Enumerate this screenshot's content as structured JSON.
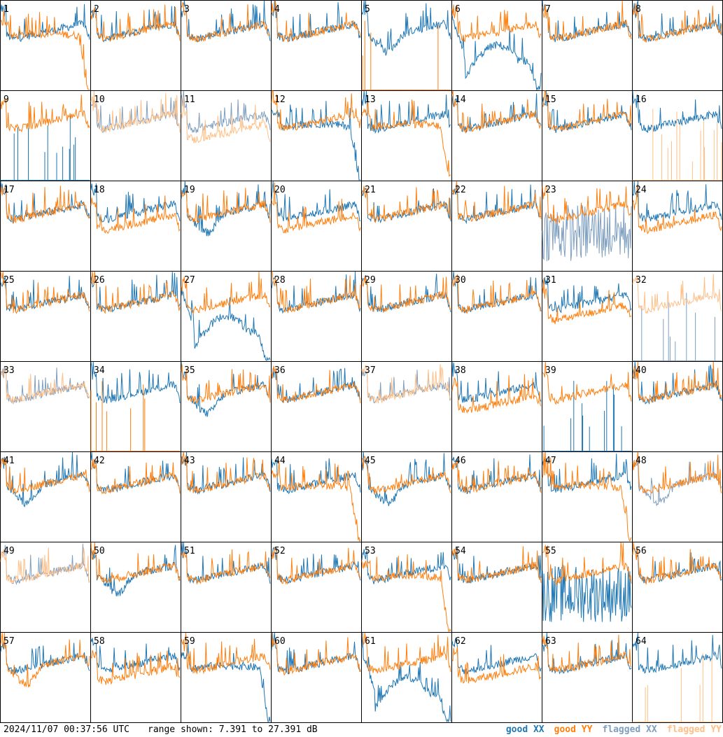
{
  "footer": {
    "timestamp": "2024/11/07 00:37:56 UTC",
    "range_text": "range shown: 7.391 to 27.391 dB"
  },
  "legend": [
    {
      "label": "good XX",
      "color": "#1f77b4"
    },
    {
      "label": "good YY",
      "color": "#ff7f0e"
    },
    {
      "label": "flagged XX",
      "color": "#7f9fbf"
    },
    {
      "label": "flagged YY",
      "color": "#ffbf86"
    }
  ],
  "colors": {
    "good_xx": "#1f77b4",
    "good_yy": "#ff7f0e",
    "flagged_xx": "#7f9fbf",
    "flagged_yy": "#ffbf86"
  },
  "chart_data": {
    "type": "line",
    "ylim": [
      7.391,
      27.391
    ],
    "yunit": "dB",
    "grid": "8x8 small multiples",
    "panels": [
      {
        "id": "1",
        "xx": "good",
        "yy": "good",
        "xx_shape": "flat",
        "yy_shape": "droop"
      },
      {
        "id": "2",
        "xx": "good",
        "yy": "good",
        "xx_shape": "flat",
        "yy_shape": "flat"
      },
      {
        "id": "3",
        "xx": "good",
        "yy": "good",
        "xx_shape": "flat",
        "yy_shape": "flat"
      },
      {
        "id": "4",
        "xx": "good",
        "yy": "good",
        "xx_shape": "flat",
        "yy_shape": "flat"
      },
      {
        "id": "5",
        "xx": "good",
        "yy": "good",
        "xx_shape": "dip",
        "yy_shape": "spike"
      },
      {
        "id": "6",
        "xx": "good",
        "yy": "good",
        "xx_shape": "deep",
        "yy_shape": "flat"
      },
      {
        "id": "7",
        "xx": "good",
        "yy": "good",
        "xx_shape": "flat",
        "yy_shape": "flat"
      },
      {
        "id": "8",
        "xx": "good",
        "yy": "good",
        "xx_shape": "flat",
        "yy_shape": "flat"
      },
      {
        "id": "9",
        "xx": "good",
        "yy": "good",
        "xx_shape": "spike",
        "yy_shape": "flat"
      },
      {
        "id": "10",
        "xx": "flagged",
        "yy": "flagged",
        "xx_shape": "flat",
        "yy_shape": "flat"
      },
      {
        "id": "11",
        "xx": "flagged",
        "yy": "flagged",
        "xx_shape": "flat",
        "yy_shape": "low"
      },
      {
        "id": "12",
        "xx": "good",
        "yy": "good",
        "xx_shape": "droop",
        "yy_shape": "flat"
      },
      {
        "id": "13",
        "xx": "good",
        "yy": "good",
        "xx_shape": "flat",
        "yy_shape": "droop"
      },
      {
        "id": "14",
        "xx": "good",
        "yy": "good",
        "xx_shape": "flat",
        "yy_shape": "flat"
      },
      {
        "id": "15",
        "xx": "good",
        "yy": "good",
        "xx_shape": "flat",
        "yy_shape": "flat"
      },
      {
        "id": "16",
        "xx": "good",
        "yy": "flagged",
        "xx_shape": "flat",
        "yy_shape": "spike"
      },
      {
        "id": "17",
        "xx": "good",
        "yy": "good",
        "xx_shape": "flat",
        "yy_shape": "flat"
      },
      {
        "id": "18",
        "xx": "good",
        "yy": "good",
        "xx_shape": "flat",
        "yy_shape": "low"
      },
      {
        "id": "19",
        "xx": "good",
        "yy": "good",
        "xx_shape": "dip",
        "yy_shape": "flat"
      },
      {
        "id": "20",
        "xx": "good",
        "yy": "good",
        "xx_shape": "flat",
        "yy_shape": "low"
      },
      {
        "id": "21",
        "xx": "good",
        "yy": "good",
        "xx_shape": "flat",
        "yy_shape": "flat"
      },
      {
        "id": "22",
        "xx": "good",
        "yy": "good",
        "xx_shape": "flat",
        "yy_shape": "flat"
      },
      {
        "id": "23",
        "xx": "flagged",
        "yy": "good",
        "xx_shape": "noise",
        "yy_shape": "flat"
      },
      {
        "id": "24",
        "xx": "good",
        "yy": "good",
        "xx_shape": "flat",
        "yy_shape": "low"
      },
      {
        "id": "25",
        "xx": "good",
        "yy": "good",
        "xx_shape": "flat",
        "yy_shape": "flat"
      },
      {
        "id": "26",
        "xx": "good",
        "yy": "good",
        "xx_shape": "flat",
        "yy_shape": "flat"
      },
      {
        "id": "27",
        "xx": "good",
        "yy": "good",
        "xx_shape": "deep",
        "yy_shape": "flat"
      },
      {
        "id": "28",
        "xx": "good",
        "yy": "good",
        "xx_shape": "flat",
        "yy_shape": "flat"
      },
      {
        "id": "29",
        "xx": "good",
        "yy": "good",
        "xx_shape": "flat",
        "yy_shape": "flat"
      },
      {
        "id": "30",
        "xx": "good",
        "yy": "good",
        "xx_shape": "flat",
        "yy_shape": "flat"
      },
      {
        "id": "31",
        "xx": "good",
        "yy": "good",
        "xx_shape": "flat",
        "yy_shape": "low"
      },
      {
        "id": "32",
        "xx": "flagged",
        "yy": "flagged",
        "xx_shape": "spike",
        "yy_shape": "flat"
      },
      {
        "id": "33",
        "xx": "flagged",
        "yy": "flagged",
        "xx_shape": "flat",
        "yy_shape": "flat"
      },
      {
        "id": "34",
        "xx": "good",
        "yy": "good",
        "xx_shape": "flat",
        "yy_shape": "spike"
      },
      {
        "id": "35",
        "xx": "good",
        "yy": "good",
        "xx_shape": "dip",
        "yy_shape": "flat"
      },
      {
        "id": "36",
        "xx": "good",
        "yy": "good",
        "xx_shape": "flat",
        "yy_shape": "flat"
      },
      {
        "id": "37",
        "xx": "flagged",
        "yy": "flagged",
        "xx_shape": "flat",
        "yy_shape": "flat"
      },
      {
        "id": "38",
        "xx": "good",
        "yy": "good",
        "xx_shape": "flat",
        "yy_shape": "low"
      },
      {
        "id": "39",
        "xx": "good",
        "yy": "good",
        "xx_shape": "spike",
        "yy_shape": "flat"
      },
      {
        "id": "40",
        "xx": "good",
        "yy": "good",
        "xx_shape": "flat",
        "yy_shape": "flat"
      },
      {
        "id": "41",
        "xx": "good",
        "yy": "good",
        "xx_shape": "dip",
        "yy_shape": "flat"
      },
      {
        "id": "42",
        "xx": "good",
        "yy": "good",
        "xx_shape": "flat",
        "yy_shape": "flat"
      },
      {
        "id": "43",
        "xx": "good",
        "yy": "good",
        "xx_shape": "flat",
        "yy_shape": "flat"
      },
      {
        "id": "44",
        "xx": "good",
        "yy": "good",
        "xx_shape": "flat",
        "yy_shape": "droop"
      },
      {
        "id": "45",
        "xx": "good",
        "yy": "good",
        "xx_shape": "dip",
        "yy_shape": "flat"
      },
      {
        "id": "46",
        "xx": "good",
        "yy": "good",
        "xx_shape": "flat",
        "yy_shape": "flat"
      },
      {
        "id": "47",
        "xx": "good",
        "yy": "good",
        "xx_shape": "flat",
        "yy_shape": "droop"
      },
      {
        "id": "48",
        "xx": "flagged",
        "yy": "good",
        "xx_shape": "dip",
        "yy_shape": "flat"
      },
      {
        "id": "49",
        "xx": "flagged",
        "yy": "flagged",
        "xx_shape": "flat",
        "yy_shape": "flat"
      },
      {
        "id": "50",
        "xx": "good",
        "yy": "good",
        "xx_shape": "dip",
        "yy_shape": "flat"
      },
      {
        "id": "51",
        "xx": "good",
        "yy": "good",
        "xx_shape": "flat",
        "yy_shape": "flat"
      },
      {
        "id": "52",
        "xx": "good",
        "yy": "good",
        "xx_shape": "flat",
        "yy_shape": "flat"
      },
      {
        "id": "53",
        "xx": "good",
        "yy": "good",
        "xx_shape": "flat",
        "yy_shape": "droop"
      },
      {
        "id": "54",
        "xx": "good",
        "yy": "good",
        "xx_shape": "flat",
        "yy_shape": "flat"
      },
      {
        "id": "55",
        "xx": "good",
        "yy": "good",
        "xx_shape": "noise",
        "yy_shape": "flat"
      },
      {
        "id": "56",
        "xx": "good",
        "yy": "good",
        "xx_shape": "flat",
        "yy_shape": "flat"
      },
      {
        "id": "57",
        "xx": "good",
        "yy": "good",
        "xx_shape": "flat",
        "yy_shape": "dip"
      },
      {
        "id": "58",
        "xx": "good",
        "yy": "good",
        "xx_shape": "flat",
        "yy_shape": "low"
      },
      {
        "id": "59",
        "xx": "good",
        "yy": "good",
        "xx_shape": "droop",
        "yy_shape": "flat"
      },
      {
        "id": "60",
        "xx": "good",
        "yy": "good",
        "xx_shape": "flat",
        "yy_shape": "flat"
      },
      {
        "id": "61",
        "xx": "good",
        "yy": "good",
        "xx_shape": "deep",
        "yy_shape": "flat"
      },
      {
        "id": "62",
        "xx": "good",
        "yy": "good",
        "xx_shape": "flat",
        "yy_shape": "low"
      },
      {
        "id": "63",
        "xx": "good",
        "yy": "good",
        "xx_shape": "flat",
        "yy_shape": "flat"
      },
      {
        "id": "64",
        "xx": "good",
        "yy": "flagged",
        "xx_shape": "flat",
        "yy_shape": "spike"
      }
    ]
  }
}
